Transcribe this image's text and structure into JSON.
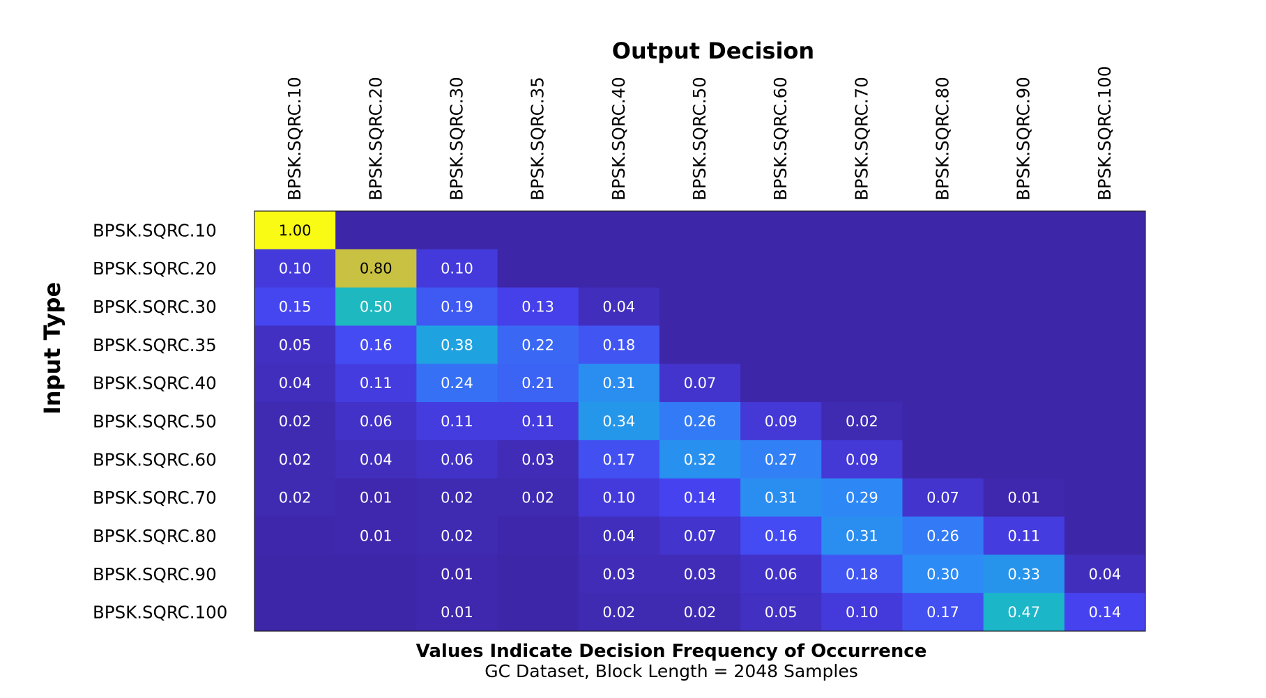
{
  "chart_data": {
    "type": "heatmap",
    "title": "Output Decision",
    "xlabel": "Output Decision",
    "ylabel": "Input Type",
    "caption": "Values Indicate Decision Frequency of Occurrence",
    "subcaption": "GC Dataset, Block Length = 2048 Samples",
    "x_categories": [
      "BPSK.SQRC.10",
      "BPSK.SQRC.20",
      "BPSK.SQRC.30",
      "BPSK.SQRC.35",
      "BPSK.SQRC.40",
      "BPSK.SQRC.50",
      "BPSK.SQRC.60",
      "BPSK.SQRC.70",
      "BPSK.SQRC.80",
      "BPSK.SQRC.90",
      "BPSK.SQRC.100"
    ],
    "y_categories": [
      "BPSK.SQRC.10",
      "BPSK.SQRC.20",
      "BPSK.SQRC.30",
      "BPSK.SQRC.35",
      "BPSK.SQRC.40",
      "BPSK.SQRC.50",
      "BPSK.SQRC.60",
      "BPSK.SQRC.70",
      "BPSK.SQRC.80",
      "BPSK.SQRC.90",
      "BPSK.SQRC.100"
    ],
    "values": [
      [
        1.0,
        0,
        0,
        0,
        0,
        0,
        0,
        0,
        0,
        0,
        0
      ],
      [
        0.1,
        0.8,
        0.1,
        0,
        0,
        0,
        0,
        0,
        0,
        0,
        0
      ],
      [
        0.15,
        0.5,
        0.19,
        0.13,
        0.04,
        0,
        0,
        0,
        0,
        0,
        0
      ],
      [
        0.05,
        0.16,
        0.38,
        0.22,
        0.18,
        0,
        0,
        0,
        0,
        0,
        0
      ],
      [
        0.04,
        0.11,
        0.24,
        0.21,
        0.31,
        0.07,
        0,
        0,
        0,
        0,
        0
      ],
      [
        0.02,
        0.06,
        0.11,
        0.11,
        0.34,
        0.26,
        0.09,
        0.02,
        0,
        0,
        0
      ],
      [
        0.02,
        0.04,
        0.06,
        0.03,
        0.17,
        0.32,
        0.27,
        0.09,
        0,
        0,
        0
      ],
      [
        0.02,
        0.01,
        0.02,
        0.02,
        0.1,
        0.14,
        0.31,
        0.29,
        0.07,
        0.01,
        0
      ],
      [
        0.004,
        0.01,
        0.02,
        0.004,
        0.04,
        0.07,
        0.16,
        0.31,
        0.26,
        0.11,
        0
      ],
      [
        0.002,
        0.002,
        0.01,
        0.002,
        0.03,
        0.03,
        0.06,
        0.18,
        0.3,
        0.33,
        0.04
      ],
      [
        0.002,
        0.002,
        0.01,
        0.002,
        0.02,
        0.02,
        0.05,
        0.1,
        0.17,
        0.47,
        0.14
      ]
    ],
    "labels": [
      [
        "1.00",
        "",
        "",
        "",
        "",
        "",
        "",
        "",
        "",
        "",
        ""
      ],
      [
        "0.10",
        "0.80",
        "0.10",
        "",
        "",
        "",
        "",
        "",
        "",
        "",
        ""
      ],
      [
        "0.15",
        "0.50",
        "0.19",
        "0.13",
        "0.04",
        "",
        "",
        "",
        "",
        "",
        ""
      ],
      [
        "0.05",
        "0.16",
        "0.38",
        "0.22",
        "0.18",
        "",
        "",
        "",
        "",
        "",
        ""
      ],
      [
        "0.04",
        "0.11",
        "0.24",
        "0.21",
        "0.31",
        "0.07",
        "",
        "",
        "",
        "",
        ""
      ],
      [
        "0.02",
        "0.06",
        "0.11",
        "0.11",
        "0.34",
        "0.26",
        "0.09",
        "0.02",
        "",
        "",
        ""
      ],
      [
        "0.02",
        "0.04",
        "0.06",
        "0.03",
        "0.17",
        "0.32",
        "0.27",
        "0.09",
        "",
        "",
        ""
      ],
      [
        "0.02",
        "0.01",
        "0.02",
        "0.02",
        "0.10",
        "0.14",
        "0.31",
        "0.29",
        "0.07",
        "0.01",
        ""
      ],
      [
        "",
        "0.01",
        "0.02",
        "",
        "0.04",
        "0.07",
        "0.16",
        "0.31",
        "0.26",
        "0.11",
        ""
      ],
      [
        "",
        "",
        "0.01",
        "",
        "0.03",
        "0.03",
        "0.06",
        "0.18",
        "0.30",
        "0.33",
        "0.04"
      ],
      [
        "",
        "",
        "0.01",
        "",
        "0.02",
        "0.02",
        "0.05",
        "0.10",
        "0.17",
        "0.47",
        "0.14"
      ]
    ],
    "value_range": [
      0,
      1
    ],
    "colormap": "parula",
    "colormap_stops": [
      "#3e26a8",
      "#4743f1",
      "#2e87f7",
      "#17b1d4",
      "#25c1ac",
      "#97cb5e",
      "#e9ba30",
      "#f9fb15"
    ],
    "label_dark_color": "#ffffff",
    "label_light_color": "#000000",
    "grid": false,
    "legend": "none"
  }
}
